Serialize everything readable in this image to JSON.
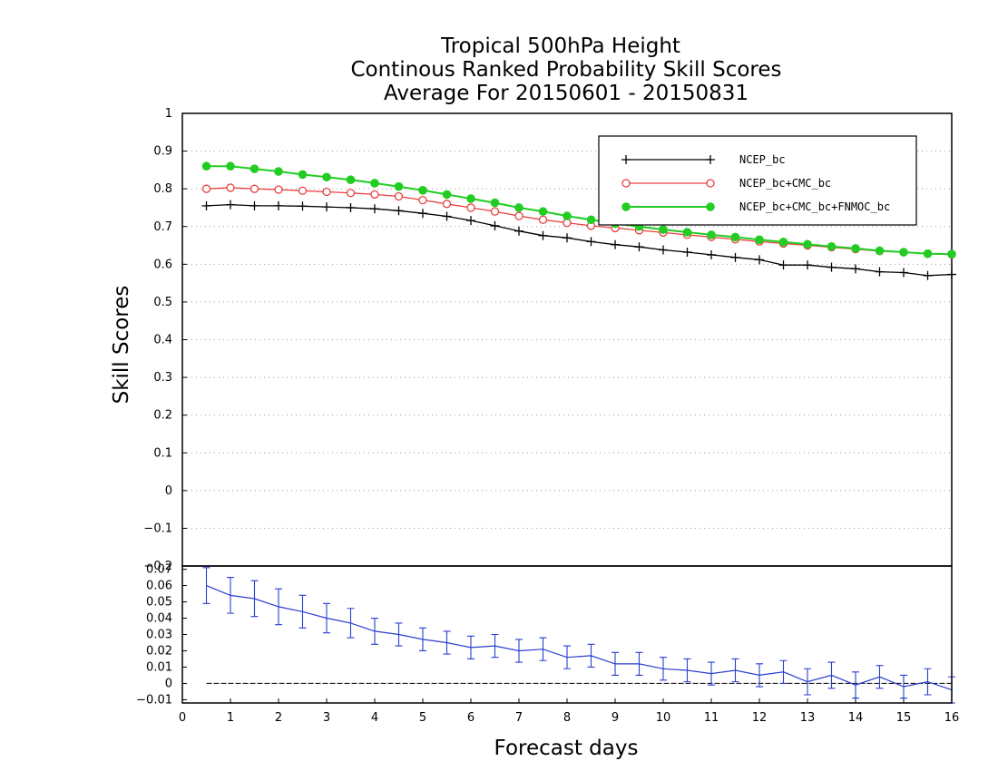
{
  "chart_data": {
    "type": "line",
    "title": [
      "Tropical 500hPa Height",
      "Continous Ranked Probability Skill Scores",
      "Average For 20150601 - 20150831"
    ],
    "xlabel": "Forecast days",
    "xlim": [
      0,
      16
    ],
    "xticks": [
      0,
      1,
      2,
      3,
      4,
      5,
      6,
      7,
      8,
      9,
      10,
      11,
      12,
      13,
      14,
      15,
      16
    ],
    "x": [
      0.5,
      1,
      1.5,
      2,
      2.5,
      3,
      3.5,
      4,
      4.5,
      5,
      5.5,
      6,
      6.5,
      7,
      7.5,
      8,
      8.5,
      9,
      9.5,
      10,
      10.5,
      11,
      11.5,
      12,
      12.5,
      13,
      13.5,
      14,
      14.5,
      15,
      15.5,
      16
    ],
    "grid": "horizontal dotted",
    "legend_position": "top-right",
    "top_panel": {
      "ylabel": "Skill Scores",
      "ylim": [
        -0.2,
        1.0
      ],
      "yticks": [
        -0.1,
        0,
        0.1,
        0.2,
        0.3,
        0.4,
        0.5,
        0.6,
        0.7,
        0.8,
        0.9,
        1
      ],
      "ytick_labels": [
        "−0.1",
        "0",
        "0.1",
        "0.2",
        "0.3",
        "0.4",
        "0.5",
        "0.6",
        "0.7",
        "0.8",
        "0.9",
        "1"
      ],
      "series": [
        {
          "name": "NCEP_bc",
          "color": "#000000",
          "marker": "plus",
          "values": [
            0.755,
            0.758,
            0.755,
            0.755,
            0.754,
            0.752,
            0.75,
            0.747,
            0.742,
            0.735,
            0.727,
            0.716,
            0.702,
            0.688,
            0.676,
            0.67,
            0.66,
            0.652,
            0.646,
            0.638,
            0.632,
            0.625,
            0.618,
            0.612,
            0.598,
            0.598,
            0.592,
            0.588,
            0.58,
            0.578,
            0.57,
            0.573
          ]
        },
        {
          "name": "NCEP_bc+CMC_bc",
          "color": "#e84040",
          "marker": "open-circle",
          "values": [
            0.8,
            0.803,
            0.8,
            0.798,
            0.795,
            0.792,
            0.789,
            0.785,
            0.78,
            0.77,
            0.76,
            0.75,
            0.74,
            0.728,
            0.718,
            0.71,
            0.702,
            0.696,
            0.69,
            0.684,
            0.678,
            0.672,
            0.666,
            0.66,
            0.655,
            0.65,
            0.645,
            0.64,
            0.635,
            0.632,
            0.628,
            0.626
          ]
        },
        {
          "name": "NCEP_bc+CMC_bc+FNMOC_bc",
          "color": "#22cc22",
          "marker": "filled-circle",
          "values": [
            0.86,
            0.86,
            0.853,
            0.846,
            0.838,
            0.831,
            0.824,
            0.815,
            0.806,
            0.796,
            0.785,
            0.774,
            0.763,
            0.75,
            0.74,
            0.728,
            0.718,
            0.708,
            0.7,
            0.692,
            0.685,
            0.678,
            0.672,
            0.665,
            0.659,
            0.653,
            0.647,
            0.642,
            0.636,
            0.632,
            0.628,
            0.627
          ]
        }
      ]
    },
    "bottom_panel": {
      "ylim": [
        -0.012,
        0.072
      ],
      "yticks": [
        -0.01,
        0,
        0.01,
        0.02,
        0.03,
        0.04,
        0.05,
        0.06,
        0.07
      ],
      "ytick_labels": [
        "−0.01",
        "0",
        "0.01",
        "0.02",
        "0.03",
        "0.04",
        "0.05",
        "0.06",
        "0.07"
      ],
      "overlap_label": "−0.2",
      "zero_line": true,
      "series": [
        {
          "color": "#2a3fd0",
          "values": [
            0.06,
            0.054,
            0.052,
            0.047,
            0.044,
            0.04,
            0.037,
            0.032,
            0.03,
            0.027,
            0.025,
            0.022,
            0.023,
            0.02,
            0.021,
            0.016,
            0.017,
            0.012,
            0.012,
            0.009,
            0.008,
            0.006,
            0.008,
            0.005,
            0.007,
            0.001,
            0.005,
            -0.001,
            0.004,
            -0.002,
            0.001,
            -0.004
          ],
          "error": [
            0.011,
            0.011,
            0.011,
            0.011,
            0.01,
            0.009,
            0.009,
            0.008,
            0.007,
            0.007,
            0.007,
            0.007,
            0.007,
            0.007,
            0.007,
            0.007,
            0.007,
            0.007,
            0.007,
            0.007,
            0.007,
            0.007,
            0.007,
            0.007,
            0.007,
            0.008,
            0.008,
            0.008,
            0.007,
            0.007,
            0.008,
            0.008
          ]
        }
      ]
    }
  }
}
